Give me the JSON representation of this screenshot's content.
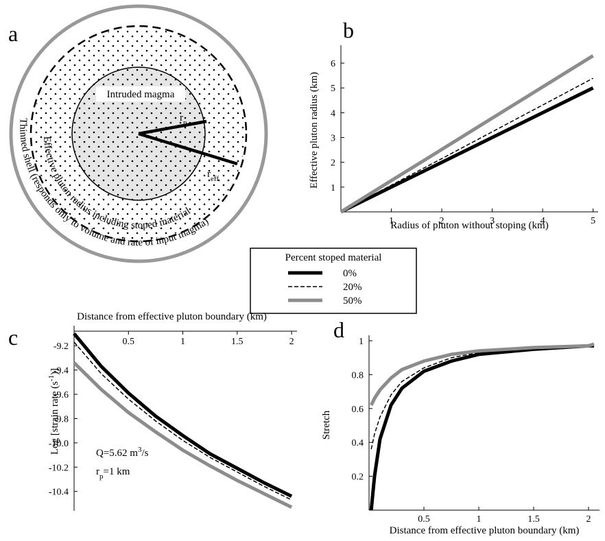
{
  "diagram": {
    "label": "a",
    "inner_label": "Intruded magma",
    "rp": {
      "main": "r",
      "sub": "p"
    },
    "reff": {
      "main": "r",
      "sub": "eff"
    },
    "effective_label": "Effective pluton radius including stoped material",
    "shell_label": "Thinned shell (responds only to volume and rate of input magma)"
  },
  "legend": {
    "title": "Percent stoped material"
  },
  "chart_data": [
    {
      "type": "line",
      "title": "b",
      "x_label": "Radius of pluton without stoping (km)",
      "y_label": "Effective pluton radius (km)",
      "x": [
        0,
        1,
        2,
        3,
        4,
        5
      ],
      "series": [
        {
          "name": "0%",
          "color": "#000000",
          "style": "solid",
          "values": [
            0,
            1,
            2,
            3,
            4,
            5
          ]
        },
        {
          "name": "20%",
          "color": "#000000",
          "style": "dashed",
          "values": [
            0,
            1.08,
            2.15,
            3.23,
            4.31,
            5.39
          ]
        },
        {
          "name": "50%",
          "color": "#8c8c8c",
          "style": "solid",
          "values": [
            0,
            1.26,
            2.52,
            3.78,
            5.04,
            6.3
          ]
        }
      ],
      "xlim": [
        0,
        5.1
      ],
      "ylim": [
        0,
        6.5
      ],
      "xticks": [
        1,
        2,
        3,
        4,
        5
      ],
      "yticks": [
        1,
        2,
        3,
        4,
        5,
        6
      ],
      "x_axis": "bottom"
    },
    {
      "type": "line",
      "title": "c",
      "x_label": "Distance from effective pluton boundary (km)",
      "y_label": {
        "parts": [
          {
            "text": "Log [strain rate (s"
          },
          {
            "text": "-1",
            "sup": true
          },
          {
            "text": ")]"
          }
        ]
      },
      "annotations": [
        {
          "parts": [
            {
              "text": "Q=5.62 m"
            },
            {
              "text": "3",
              "sup": true
            },
            {
              "text": "/s"
            }
          ]
        },
        {
          "parts": [
            {
              "text": "r"
            },
            {
              "text": "p",
              "sub": true
            },
            {
              "text": "=1 km"
            }
          ]
        }
      ],
      "x": [
        0,
        0.25,
        0.5,
        0.75,
        1,
        1.25,
        1.5,
        1.75,
        2
      ],
      "series": [
        {
          "color": "#000000",
          "style": "solid",
          "values": [
            -9.1,
            -9.37,
            -9.59,
            -9.78,
            -9.94,
            -10.09,
            -10.21,
            -10.33,
            -10.44
          ]
        },
        {
          "color": "#000000",
          "style": "dashed",
          "values": [
            -9.17,
            -9.43,
            -9.64,
            -9.82,
            -9.98,
            -10.12,
            -10.24,
            -10.36,
            -10.47
          ]
        },
        {
          "color": "#8c8c8c",
          "style": "solid",
          "values": [
            -9.34,
            -9.56,
            -9.75,
            -9.91,
            -10.06,
            -10.19,
            -10.31,
            -10.42,
            -10.53
          ]
        }
      ],
      "xlim": [
        0,
        2.05
      ],
      "ylim": [
        -10.56,
        -9.08
      ],
      "xticks": [
        0.5,
        1,
        1.5,
        2
      ],
      "yticks": [
        -9.2,
        -9.4,
        -9.6,
        -9.8,
        {
          "value": -10,
          "label": "-10.0"
        },
        -10.2,
        -10.4
      ],
      "x_axis": "top"
    },
    {
      "type": "line",
      "title": "d",
      "x_label": "Distance from effective pluton boundary (km)",
      "y_label": "Stretch",
      "x": [
        0.02,
        0.05,
        0.1,
        0.2,
        0.3,
        0.5,
        0.75,
        1,
        1.5,
        2,
        2.05
      ],
      "series": [
        {
          "color": "#000000",
          "style": "solid",
          "values": [
            0,
            0.2,
            0.42,
            0.62,
            0.72,
            0.82,
            0.88,
            0.92,
            0.95,
            0.97,
            0.97
          ]
        },
        {
          "color": "#000000",
          "style": "dashed",
          "values": [
            0.36,
            0.45,
            0.55,
            0.68,
            0.76,
            0.84,
            0.9,
            0.93,
            0.96,
            0.97,
            0.98
          ]
        },
        {
          "color": "#8c8c8c",
          "style": "solid",
          "values": [
            0.62,
            0.66,
            0.71,
            0.78,
            0.83,
            0.88,
            0.92,
            0.94,
            0.96,
            0.97,
            0.98
          ]
        }
      ],
      "xlim": [
        0,
        2.1
      ],
      "ylim": [
        0,
        1
      ],
      "xticks": [
        0.5,
        1,
        1.5,
        2
      ],
      "yticks": [
        0.2,
        0.4,
        0.6,
        0.8,
        1
      ],
      "x_axis": "bottom"
    }
  ]
}
